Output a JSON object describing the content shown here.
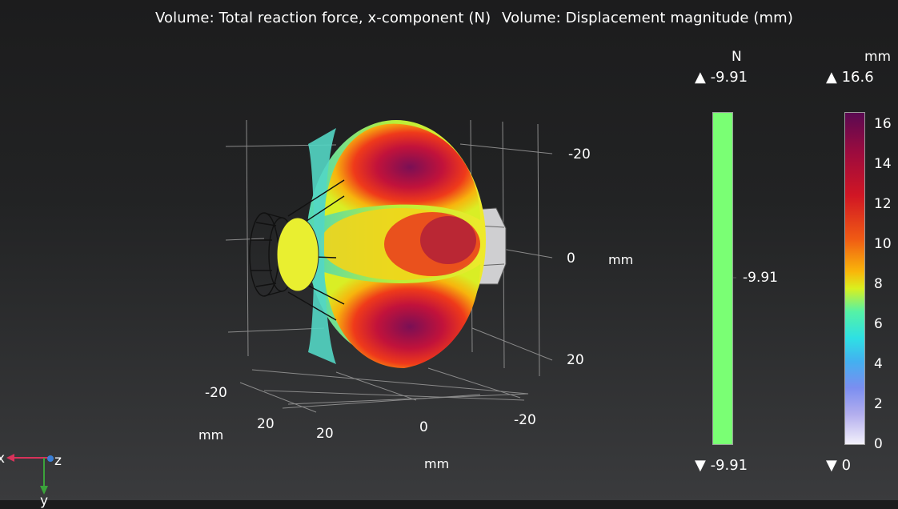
{
  "title": {
    "part1": "Volume: Total reaction force, x-component (N)",
    "part2": "Volume: Displacement magnitude (mm)"
  },
  "axes": {
    "right_ticks": [
      "-20",
      "0",
      "20"
    ],
    "right_unit": "mm",
    "bottom_left_ticks": [
      "-20",
      "20"
    ],
    "bottom_left_unit": "mm",
    "bottom_ticks": [
      "20",
      "0",
      "-20"
    ],
    "bottom_unit": "mm"
  },
  "legend_force": {
    "unit": "N",
    "max": "▲ -9.91",
    "min": "▼ -9.91",
    "center": "-9.91",
    "color": "#7aff74"
  },
  "legend_disp": {
    "unit": "mm",
    "max": "▲ 16.6",
    "min": "▼ 0",
    "ticks": [
      "16",
      "14",
      "12",
      "10",
      "8",
      "6",
      "4",
      "2",
      "0"
    ]
  },
  "triad": {
    "x_label": "x",
    "z_label": "z",
    "y_label": "y",
    "colors": {
      "x": "#d8325a",
      "y": "#3ba33b",
      "z": "#3a7fd6"
    }
  }
}
